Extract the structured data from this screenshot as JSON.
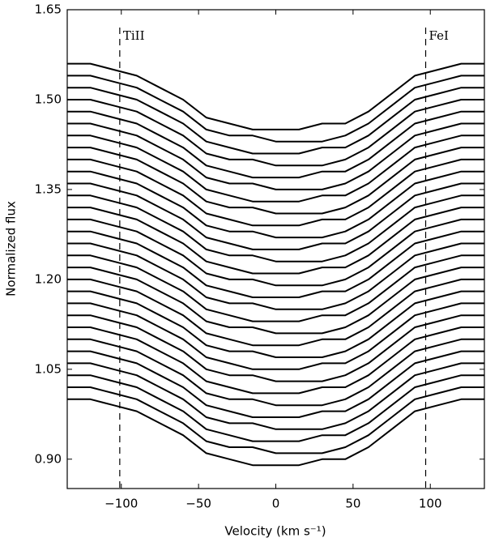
{
  "chart_data": {
    "type": "line",
    "xlabel": "Velocity (km s⁻¹)",
    "ylabel": "Normalized flux",
    "color": "#000000",
    "x": [
      -135,
      -120,
      -105,
      -90,
      -75,
      -60,
      -45,
      -30,
      -15,
      0,
      15,
      30,
      45,
      60,
      75,
      90,
      105,
      120,
      135
    ],
    "xlim": [
      -135,
      135
    ],
    "ylim": [
      0.851,
      1.65
    ],
    "xticks": [
      {
        "value": -100,
        "label": "−100"
      },
      {
        "value": -50,
        "label": "−50"
      },
      0,
      50,
      100
    ],
    "yticks": [
      {
        "value": 0.9,
        "label": "0.90"
      },
      1.05,
      {
        "value": 1.2,
        "label": "1.20"
      },
      1.35,
      {
        "value": 1.5,
        "label": "1.50"
      },
      1.65
    ],
    "annotations": [
      {
        "text": "TiII",
        "x": -101
      },
      {
        "text": "FeI",
        "x": 97
      }
    ],
    "series": [
      {
        "values": [
          1.0,
          1.0,
          0.99,
          0.98,
          0.96,
          0.94,
          0.91,
          0.9,
          0.89,
          0.89,
          0.89,
          0.9,
          0.9,
          0.92,
          0.95,
          0.98,
          0.99,
          1.0,
          1.0
        ]
      },
      {
        "values": [
          1.02,
          1.02,
          1.01,
          1.0,
          0.98,
          0.96,
          0.93,
          0.92,
          0.92,
          0.91,
          0.91,
          0.91,
          0.92,
          0.94,
          0.97,
          1.0,
          1.01,
          1.02,
          1.02
        ]
      },
      {
        "values": [
          1.04,
          1.04,
          1.03,
          1.02,
          1.0,
          0.98,
          0.95,
          0.94,
          0.93,
          0.93,
          0.93,
          0.94,
          0.94,
          0.96,
          0.99,
          1.02,
          1.03,
          1.04,
          1.04
        ]
      },
      {
        "values": [
          1.06,
          1.06,
          1.05,
          1.04,
          1.02,
          1.0,
          0.97,
          0.96,
          0.96,
          0.95,
          0.95,
          0.95,
          0.96,
          0.98,
          1.01,
          1.04,
          1.05,
          1.06,
          1.06
        ]
      },
      {
        "values": [
          1.08,
          1.08,
          1.07,
          1.06,
          1.04,
          1.02,
          0.99,
          0.98,
          0.97,
          0.97,
          0.97,
          0.98,
          0.98,
          1.0,
          1.03,
          1.06,
          1.07,
          1.08,
          1.08
        ]
      },
      {
        "values": [
          1.1,
          1.1,
          1.09,
          1.08,
          1.06,
          1.04,
          1.01,
          1.0,
          1.0,
          0.99,
          0.99,
          0.99,
          1.0,
          1.02,
          1.05,
          1.08,
          1.09,
          1.1,
          1.1
        ]
      },
      {
        "values": [
          1.12,
          1.12,
          1.11,
          1.1,
          1.08,
          1.06,
          1.03,
          1.02,
          1.01,
          1.01,
          1.01,
          1.02,
          1.02,
          1.04,
          1.07,
          1.1,
          1.11,
          1.12,
          1.12
        ]
      },
      {
        "values": [
          1.14,
          1.14,
          1.13,
          1.12,
          1.1,
          1.08,
          1.05,
          1.04,
          1.04,
          1.03,
          1.03,
          1.03,
          1.04,
          1.06,
          1.09,
          1.12,
          1.13,
          1.14,
          1.14
        ]
      },
      {
        "values": [
          1.16,
          1.16,
          1.15,
          1.14,
          1.12,
          1.1,
          1.07,
          1.06,
          1.05,
          1.05,
          1.05,
          1.06,
          1.06,
          1.08,
          1.11,
          1.14,
          1.15,
          1.16,
          1.16
        ]
      },
      {
        "values": [
          1.18,
          1.18,
          1.17,
          1.16,
          1.14,
          1.12,
          1.09,
          1.08,
          1.08,
          1.07,
          1.07,
          1.07,
          1.08,
          1.1,
          1.13,
          1.16,
          1.17,
          1.18,
          1.18
        ]
      },
      {
        "values": [
          1.2,
          1.2,
          1.19,
          1.18,
          1.16,
          1.14,
          1.11,
          1.1,
          1.09,
          1.09,
          1.09,
          1.1,
          1.1,
          1.12,
          1.15,
          1.18,
          1.19,
          1.2,
          1.2
        ]
      },
      {
        "values": [
          1.22,
          1.22,
          1.21,
          1.2,
          1.18,
          1.16,
          1.13,
          1.12,
          1.12,
          1.11,
          1.11,
          1.11,
          1.12,
          1.14,
          1.17,
          1.2,
          1.21,
          1.22,
          1.22
        ]
      },
      {
        "values": [
          1.24,
          1.24,
          1.23,
          1.22,
          1.2,
          1.18,
          1.15,
          1.14,
          1.13,
          1.13,
          1.13,
          1.14,
          1.14,
          1.16,
          1.19,
          1.22,
          1.23,
          1.24,
          1.24
        ]
      },
      {
        "values": [
          1.26,
          1.26,
          1.25,
          1.24,
          1.22,
          1.2,
          1.17,
          1.16,
          1.16,
          1.15,
          1.15,
          1.15,
          1.16,
          1.18,
          1.21,
          1.24,
          1.25,
          1.26,
          1.26
        ]
      },
      {
        "values": [
          1.28,
          1.28,
          1.27,
          1.26,
          1.24,
          1.22,
          1.19,
          1.18,
          1.17,
          1.17,
          1.17,
          1.18,
          1.18,
          1.2,
          1.23,
          1.26,
          1.27,
          1.28,
          1.28
        ]
      },
      {
        "values": [
          1.3,
          1.3,
          1.29,
          1.28,
          1.26,
          1.24,
          1.21,
          1.2,
          1.2,
          1.19,
          1.19,
          1.19,
          1.2,
          1.22,
          1.25,
          1.28,
          1.29,
          1.3,
          1.3
        ]
      },
      {
        "values": [
          1.32,
          1.32,
          1.31,
          1.3,
          1.28,
          1.26,
          1.23,
          1.22,
          1.21,
          1.21,
          1.21,
          1.22,
          1.22,
          1.24,
          1.27,
          1.3,
          1.31,
          1.32,
          1.32
        ]
      },
      {
        "values": [
          1.34,
          1.34,
          1.33,
          1.32,
          1.3,
          1.28,
          1.25,
          1.24,
          1.24,
          1.23,
          1.23,
          1.23,
          1.24,
          1.26,
          1.29,
          1.32,
          1.33,
          1.34,
          1.34
        ]
      },
      {
        "values": [
          1.36,
          1.36,
          1.35,
          1.34,
          1.32,
          1.3,
          1.27,
          1.26,
          1.25,
          1.25,
          1.25,
          1.26,
          1.26,
          1.28,
          1.31,
          1.34,
          1.35,
          1.36,
          1.36
        ]
      },
      {
        "values": [
          1.38,
          1.38,
          1.37,
          1.36,
          1.34,
          1.32,
          1.29,
          1.28,
          1.28,
          1.27,
          1.27,
          1.27,
          1.28,
          1.3,
          1.33,
          1.36,
          1.37,
          1.38,
          1.38
        ]
      },
      {
        "values": [
          1.4,
          1.4,
          1.39,
          1.38,
          1.36,
          1.34,
          1.31,
          1.3,
          1.29,
          1.29,
          1.29,
          1.3,
          1.3,
          1.32,
          1.35,
          1.38,
          1.39,
          1.4,
          1.4
        ]
      },
      {
        "values": [
          1.42,
          1.42,
          1.41,
          1.4,
          1.38,
          1.36,
          1.33,
          1.32,
          1.32,
          1.31,
          1.31,
          1.31,
          1.32,
          1.34,
          1.37,
          1.4,
          1.41,
          1.42,
          1.42
        ]
      },
      {
        "values": [
          1.44,
          1.44,
          1.43,
          1.42,
          1.4,
          1.38,
          1.35,
          1.34,
          1.33,
          1.33,
          1.33,
          1.34,
          1.34,
          1.36,
          1.39,
          1.42,
          1.43,
          1.44,
          1.44
        ]
      },
      {
        "values": [
          1.46,
          1.46,
          1.45,
          1.44,
          1.42,
          1.4,
          1.37,
          1.36,
          1.36,
          1.35,
          1.35,
          1.35,
          1.36,
          1.38,
          1.41,
          1.44,
          1.45,
          1.46,
          1.46
        ]
      },
      {
        "values": [
          1.48,
          1.48,
          1.47,
          1.46,
          1.44,
          1.42,
          1.39,
          1.38,
          1.37,
          1.37,
          1.37,
          1.38,
          1.38,
          1.4,
          1.43,
          1.46,
          1.47,
          1.48,
          1.48
        ]
      },
      {
        "values": [
          1.5,
          1.5,
          1.49,
          1.48,
          1.46,
          1.44,
          1.41,
          1.4,
          1.4,
          1.39,
          1.39,
          1.39,
          1.4,
          1.42,
          1.45,
          1.48,
          1.49,
          1.5,
          1.5
        ]
      },
      {
        "values": [
          1.52,
          1.52,
          1.51,
          1.5,
          1.48,
          1.46,
          1.43,
          1.42,
          1.41,
          1.41,
          1.41,
          1.42,
          1.42,
          1.44,
          1.47,
          1.5,
          1.51,
          1.52,
          1.52
        ]
      },
      {
        "values": [
          1.54,
          1.54,
          1.53,
          1.52,
          1.5,
          1.48,
          1.45,
          1.44,
          1.44,
          1.43,
          1.43,
          1.43,
          1.44,
          1.46,
          1.49,
          1.52,
          1.53,
          1.54,
          1.54
        ]
      },
      {
        "values": [
          1.56,
          1.56,
          1.55,
          1.54,
          1.52,
          1.5,
          1.47,
          1.46,
          1.45,
          1.45,
          1.45,
          1.46,
          1.46,
          1.48,
          1.51,
          1.54,
          1.55,
          1.56,
          1.56
        ]
      }
    ]
  }
}
